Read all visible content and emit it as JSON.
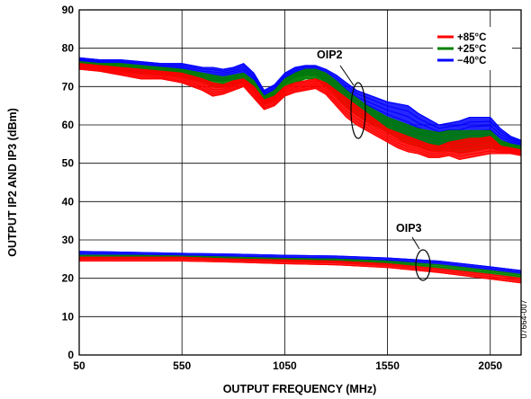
{
  "chart_data": {
    "type": "line",
    "xlabel": "OUTPUT FREQUENCY (MHz)",
    "ylabel": "OUTPUT IP2 AND IP3 (dBm)",
    "xlim": [
      50,
      2200
    ],
    "ylim": [
      0,
      90
    ],
    "x_ticks": [
      50,
      550,
      1050,
      1550,
      2050
    ],
    "y_ticks": [
      0,
      10,
      20,
      30,
      40,
      50,
      60,
      70,
      80,
      90
    ],
    "grid": true,
    "legend_position": "top-right",
    "figure_id": "07664-007",
    "annotations": [
      "OIP2",
      "OIP3"
    ],
    "series": [
      {
        "name": "+85°C",
        "color": "#ff0000",
        "group": "OIP2",
        "x": [
          50,
          150,
          250,
          350,
          450,
          550,
          650,
          700,
          750,
          800,
          850,
          900,
          950,
          1000,
          1050,
          1100,
          1150,
          1200,
          1250,
          1300,
          1350,
          1400,
          1450,
          1500,
          1550,
          1600,
          1650,
          1700,
          1750,
          1800,
          1850,
          1900,
          1950,
          2000,
          2050,
          2100,
          2150,
          2200
        ],
        "upper": [
          76,
          75.5,
          75,
          74.5,
          74,
          73.5,
          72,
          71,
          70.5,
          71.5,
          72,
          70,
          66.5,
          67.5,
          70,
          71,
          71.5,
          72,
          71,
          69,
          67,
          65,
          63,
          61,
          59,
          58,
          57,
          56,
          55,
          54.5,
          55.5,
          56,
          56.5,
          56.5,
          57,
          54.5,
          54,
          53.5
        ],
        "lower": [
          74.5,
          74,
          73,
          72,
          72,
          71,
          69,
          67.5,
          68,
          69,
          70,
          67,
          64,
          65,
          67.5,
          68.5,
          69,
          69.5,
          68,
          65,
          62,
          60,
          58.5,
          57,
          55.5,
          54,
          53,
          52.5,
          51.5,
          51.5,
          52,
          51,
          51.5,
          52,
          52.5,
          52.5,
          52.5,
          52
        ]
      },
      {
        "name": "+25°C",
        "color": "#008000",
        "group": "OIP2",
        "x": [
          50,
          150,
          250,
          350,
          450,
          550,
          650,
          700,
          750,
          800,
          850,
          900,
          950,
          1000,
          1050,
          1100,
          1150,
          1200,
          1250,
          1300,
          1350,
          1400,
          1450,
          1500,
          1550,
          1600,
          1650,
          1700,
          1750,
          1800,
          1850,
          1900,
          1950,
          2000,
          2050,
          2100,
          2150,
          2200
        ],
        "upper": [
          76.5,
          76,
          76,
          75.5,
          75,
          74.5,
          73.5,
          73,
          72.5,
          73,
          73.5,
          71.5,
          67.5,
          69,
          72,
          73.5,
          74.5,
          74.5,
          73.5,
          71.5,
          69,
          67,
          65,
          63.5,
          62,
          61,
          60,
          59,
          58.5,
          58,
          58.5,
          58.5,
          58.5,
          58.5,
          58.5,
          56,
          55,
          54.5
        ],
        "lower": [
          75.5,
          75,
          74,
          73.5,
          73,
          72.5,
          71,
          70,
          70,
          70.5,
          71,
          69,
          65.5,
          66.5,
          69.5,
          71,
          72,
          72,
          70,
          67.5,
          64.5,
          62.5,
          61,
          59.5,
          58,
          56.5,
          55,
          54.5,
          53.5,
          53,
          53.5,
          52.5,
          53,
          53.5,
          54,
          53.5,
          53.5,
          53
        ]
      },
      {
        "name": "−40°C",
        "color": "#0000ff",
        "group": "OIP2",
        "x": [
          50,
          150,
          250,
          350,
          450,
          550,
          650,
          700,
          750,
          800,
          850,
          900,
          950,
          1000,
          1050,
          1100,
          1150,
          1200,
          1250,
          1300,
          1350,
          1400,
          1450,
          1500,
          1550,
          1600,
          1650,
          1700,
          1750,
          1800,
          1850,
          1900,
          1950,
          2000,
          2050,
          2100,
          2150,
          2200
        ],
        "upper": [
          77.5,
          77,
          77,
          76.5,
          76,
          76,
          75,
          75,
          74.5,
          75,
          76,
          73.5,
          69,
          70.5,
          73.5,
          75,
          75.5,
          75.5,
          74.5,
          73,
          71,
          69,
          68,
          67,
          66,
          65.5,
          65,
          63,
          61.5,
          60,
          60.5,
          61,
          62,
          62,
          62,
          59,
          57,
          56
        ],
        "lower": [
          76,
          75.5,
          75,
          74.5,
          74,
          73.5,
          72,
          71.5,
          71.5,
          72,
          72.5,
          70.5,
          66.5,
          68,
          71,
          72.5,
          73,
          73,
          71.5,
          69,
          66,
          64,
          62.5,
          61,
          59.5,
          58,
          56.5,
          55.5,
          55,
          54.5,
          55,
          54,
          54.5,
          55,
          55.5,
          54.5,
          54.5,
          54
        ]
      },
      {
        "name": "+85°C",
        "color": "#ff0000",
        "group": "OIP3",
        "x": [
          50,
          300,
          550,
          800,
          1050,
          1300,
          1550,
          1800,
          2050,
          2200
        ],
        "upper": [
          25.5,
          25.5,
          25.5,
          25,
          24.8,
          24.5,
          23.8,
          22.5,
          21,
          20
        ],
        "lower": [
          24.5,
          24.5,
          24.5,
          24.2,
          23.8,
          23.5,
          22.8,
          21.5,
          19.8,
          18.8
        ]
      },
      {
        "name": "+25°C",
        "color": "#008000",
        "group": "OIP3",
        "x": [
          50,
          300,
          550,
          800,
          1050,
          1300,
          1550,
          1800,
          2050,
          2200
        ],
        "upper": [
          26,
          26,
          25.8,
          25.5,
          25.2,
          25,
          24.5,
          23.5,
          22,
          21
        ],
        "lower": [
          25.2,
          25.2,
          25,
          24.8,
          24.5,
          24.2,
          23.6,
          22.5,
          21,
          20
        ]
      },
      {
        "name": "−40°C",
        "color": "#0000ff",
        "group": "OIP3",
        "x": [
          50,
          300,
          550,
          800,
          1050,
          1300,
          1550,
          1800,
          2050,
          2200
        ],
        "upper": [
          27,
          26.8,
          26.5,
          26.3,
          26,
          25.8,
          25.3,
          24.5,
          23,
          22
        ],
        "lower": [
          26,
          25.8,
          25.5,
          25.3,
          25,
          24.8,
          24.3,
          23.5,
          22,
          21
        ]
      }
    ],
    "legend": [
      {
        "label": "+85°C",
        "color": "#ff0000"
      },
      {
        "label": "+25°C",
        "color": "#008000"
      },
      {
        "label": "−40°C",
        "color": "#0000ff"
      }
    ]
  }
}
